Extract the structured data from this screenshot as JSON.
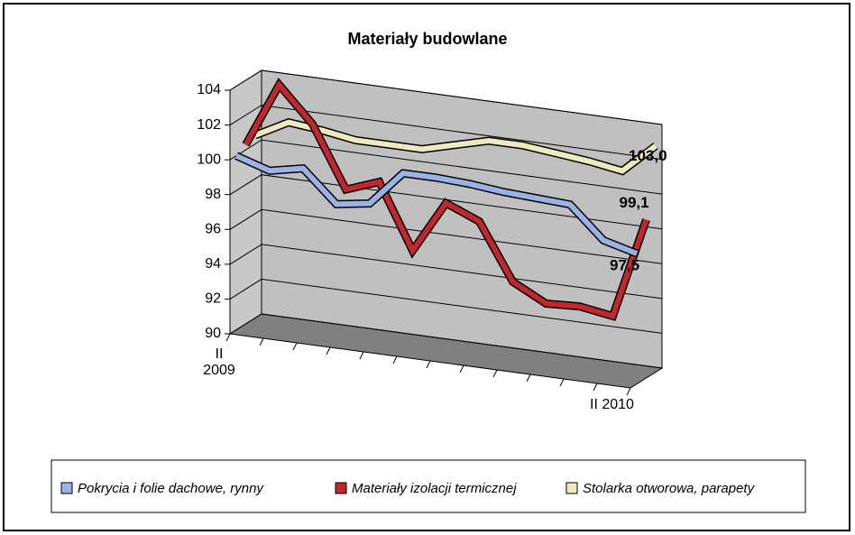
{
  "chart_data": {
    "type": "line3d",
    "title": "Materiały budowlane",
    "categories": [
      "II 2009",
      null,
      null,
      null,
      null,
      null,
      null,
      null,
      null,
      null,
      null,
      null,
      "II 2010"
    ],
    "series": [
      {
        "name": "Pokrycia i folie dachowe, rynny",
        "color": "#99b3e6",
        "values": [
          100.0,
          99.4,
          99.8,
          98.0,
          98.3,
          100.3,
          100.3,
          100.2,
          100.0,
          99.9,
          99.8,
          98.0,
          97.5
        ],
        "value_labels": [
          null,
          null,
          null,
          null,
          null,
          null,
          null,
          null,
          null,
          null,
          null,
          null,
          "97,5"
        ]
      },
      {
        "name": "Materiały izolacji termicznej",
        "color": "#c0282d",
        "values": [
          100.3,
          104.0,
          102.0,
          98.5,
          99.2,
          95.5,
          98.5,
          97.7,
          94.5,
          93.5,
          93.6,
          93.3,
          99.1
        ],
        "value_labels": [
          null,
          null,
          null,
          null,
          null,
          null,
          null,
          null,
          null,
          null,
          null,
          null,
          "99,1"
        ]
      },
      {
        "name": "Stolarka otworowa, parapety",
        "color": "#eeeac0",
        "values": [
          100.5,
          101.5,
          101.3,
          101.0,
          101.0,
          101.0,
          101.5,
          102.0,
          102.0,
          101.8,
          101.6,
          101.3,
          103.0
        ],
        "value_labels": [
          null,
          null,
          null,
          null,
          null,
          null,
          null,
          null,
          null,
          null,
          null,
          null,
          "103,0"
        ]
      }
    ],
    "ylim": [
      90,
      104
    ],
    "yticks": [
      90,
      92,
      94,
      96,
      98,
      100,
      102,
      104
    ],
    "grid": true
  }
}
